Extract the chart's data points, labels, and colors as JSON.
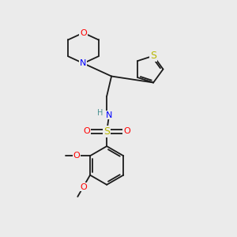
{
  "bg_color": "#ebebeb",
  "bond_color": "#1a1a1a",
  "atom_colors": {
    "O": "#ff0000",
    "N": "#0000ff",
    "S_thiophene": "#b8b800",
    "S_sulfonyl": "#b8b800",
    "H": "#4a9090",
    "C": "#1a1a1a"
  },
  "bond_width": 1.3,
  "fig_width": 3.0,
  "fig_height": 3.0,
  "dpi": 100
}
